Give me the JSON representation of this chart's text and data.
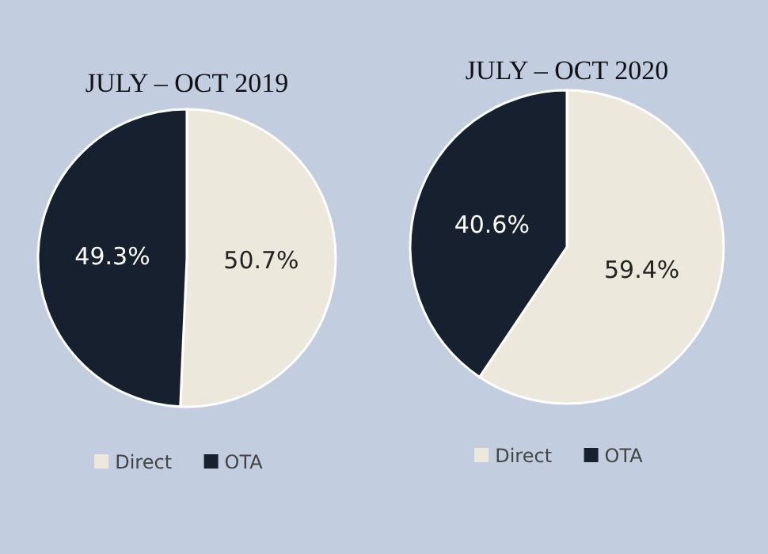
{
  "chart_data": [
    {
      "type": "pie",
      "title": "JULY – OCT 2019",
      "categories": [
        "Direct",
        "OTA"
      ],
      "values": [
        50.7,
        49.3
      ],
      "value_labels": [
        "50.7%",
        "49.3%"
      ],
      "colors": [
        "#ece9dc",
        "#17202f"
      ],
      "legend": "bottom"
    },
    {
      "type": "pie",
      "title": "JULY – OCT 2020",
      "categories": [
        "Direct",
        "OTA"
      ],
      "values": [
        59.4,
        40.6
      ],
      "value_labels": [
        "59.4%",
        "40.6%"
      ],
      "colors": [
        "#ece9dc",
        "#17202f"
      ],
      "legend": "bottom"
    }
  ]
}
